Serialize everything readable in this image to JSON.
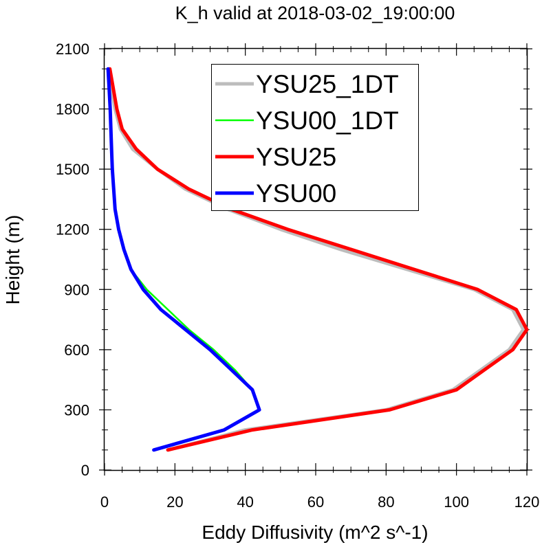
{
  "chart_data": {
    "type": "line",
    "title": "K_h valid at 2018-03-02_19:00:00",
    "xlabel": "Eddy Diffusivity (m^2 s^-1)",
    "ylabel": "Height (m)",
    "xlim": [
      0,
      120
    ],
    "ylim": [
      0,
      2100
    ],
    "xticks": [
      "0",
      "20",
      "40",
      "60",
      "80",
      "100",
      "120"
    ],
    "yticks": [
      "0",
      "300",
      "600",
      "900",
      "1200",
      "1500",
      "1800",
      "2100"
    ],
    "grid": false,
    "legend_position": "top-right",
    "series": [
      {
        "name": "YSU25_1DT",
        "color": "#bdbdbd",
        "points": [
          [
            18,
            100
          ],
          [
            40,
            200
          ],
          [
            80,
            300
          ],
          [
            99,
            400
          ],
          [
            107,
            500
          ],
          [
            115,
            600
          ],
          [
            119,
            700
          ],
          [
            116,
            800
          ],
          [
            105,
            900
          ],
          [
            86,
            1000
          ],
          [
            67,
            1100
          ],
          [
            50,
            1200
          ],
          [
            35,
            1300
          ],
          [
            23,
            1400
          ],
          [
            15,
            1500
          ],
          [
            8,
            1600
          ],
          [
            4.5,
            1700
          ],
          [
            3,
            1800
          ],
          [
            2,
            1900
          ],
          [
            1.3,
            2000
          ]
        ]
      },
      {
        "name": "YSU00_1DT",
        "color": "#00ff00",
        "points": [
          [
            14,
            100
          ],
          [
            34,
            200
          ],
          [
            44,
            300
          ],
          [
            42,
            400
          ],
          [
            37,
            500
          ],
          [
            31,
            600
          ],
          [
            24,
            700
          ],
          [
            18,
            800
          ],
          [
            12,
            900
          ],
          [
            7.5,
            1000
          ],
          [
            5.5,
            1100
          ],
          [
            4,
            1200
          ],
          [
            3,
            1300
          ],
          [
            2.6,
            1400
          ],
          [
            2.2,
            1500
          ],
          [
            2,
            1600
          ],
          [
            1.8,
            1700
          ],
          [
            1.6,
            1800
          ],
          [
            1.3,
            1900
          ],
          [
            1,
            2000
          ]
        ]
      },
      {
        "name": "YSU25",
        "color": "#ff0000",
        "points": [
          [
            18,
            100
          ],
          [
            42,
            200
          ],
          [
            81,
            300
          ],
          [
            100,
            400
          ],
          [
            108,
            500
          ],
          [
            116,
            600
          ],
          [
            120,
            700
          ],
          [
            117,
            800
          ],
          [
            106,
            900
          ],
          [
            88,
            1000
          ],
          [
            70,
            1100
          ],
          [
            52,
            1200
          ],
          [
            36,
            1300
          ],
          [
            24,
            1400
          ],
          [
            15,
            1500
          ],
          [
            9,
            1600
          ],
          [
            5,
            1700
          ],
          [
            3.5,
            1800
          ],
          [
            2.5,
            1900
          ],
          [
            1.5,
            2000
          ]
        ]
      },
      {
        "name": "YSU00",
        "color": "#0000ff",
        "points": [
          [
            14,
            100
          ],
          [
            34,
            200
          ],
          [
            44,
            300
          ],
          [
            42,
            400
          ],
          [
            36,
            500
          ],
          [
            30,
            600
          ],
          [
            23,
            700
          ],
          [
            16,
            800
          ],
          [
            11,
            900
          ],
          [
            7.5,
            1000
          ],
          [
            5.5,
            1100
          ],
          [
            4,
            1200
          ],
          [
            3,
            1300
          ],
          [
            2.6,
            1400
          ],
          [
            2.2,
            1500
          ],
          [
            2,
            1600
          ],
          [
            1.8,
            1700
          ],
          [
            1.6,
            1800
          ],
          [
            1.3,
            1900
          ],
          [
            1,
            2000
          ]
        ]
      }
    ]
  }
}
